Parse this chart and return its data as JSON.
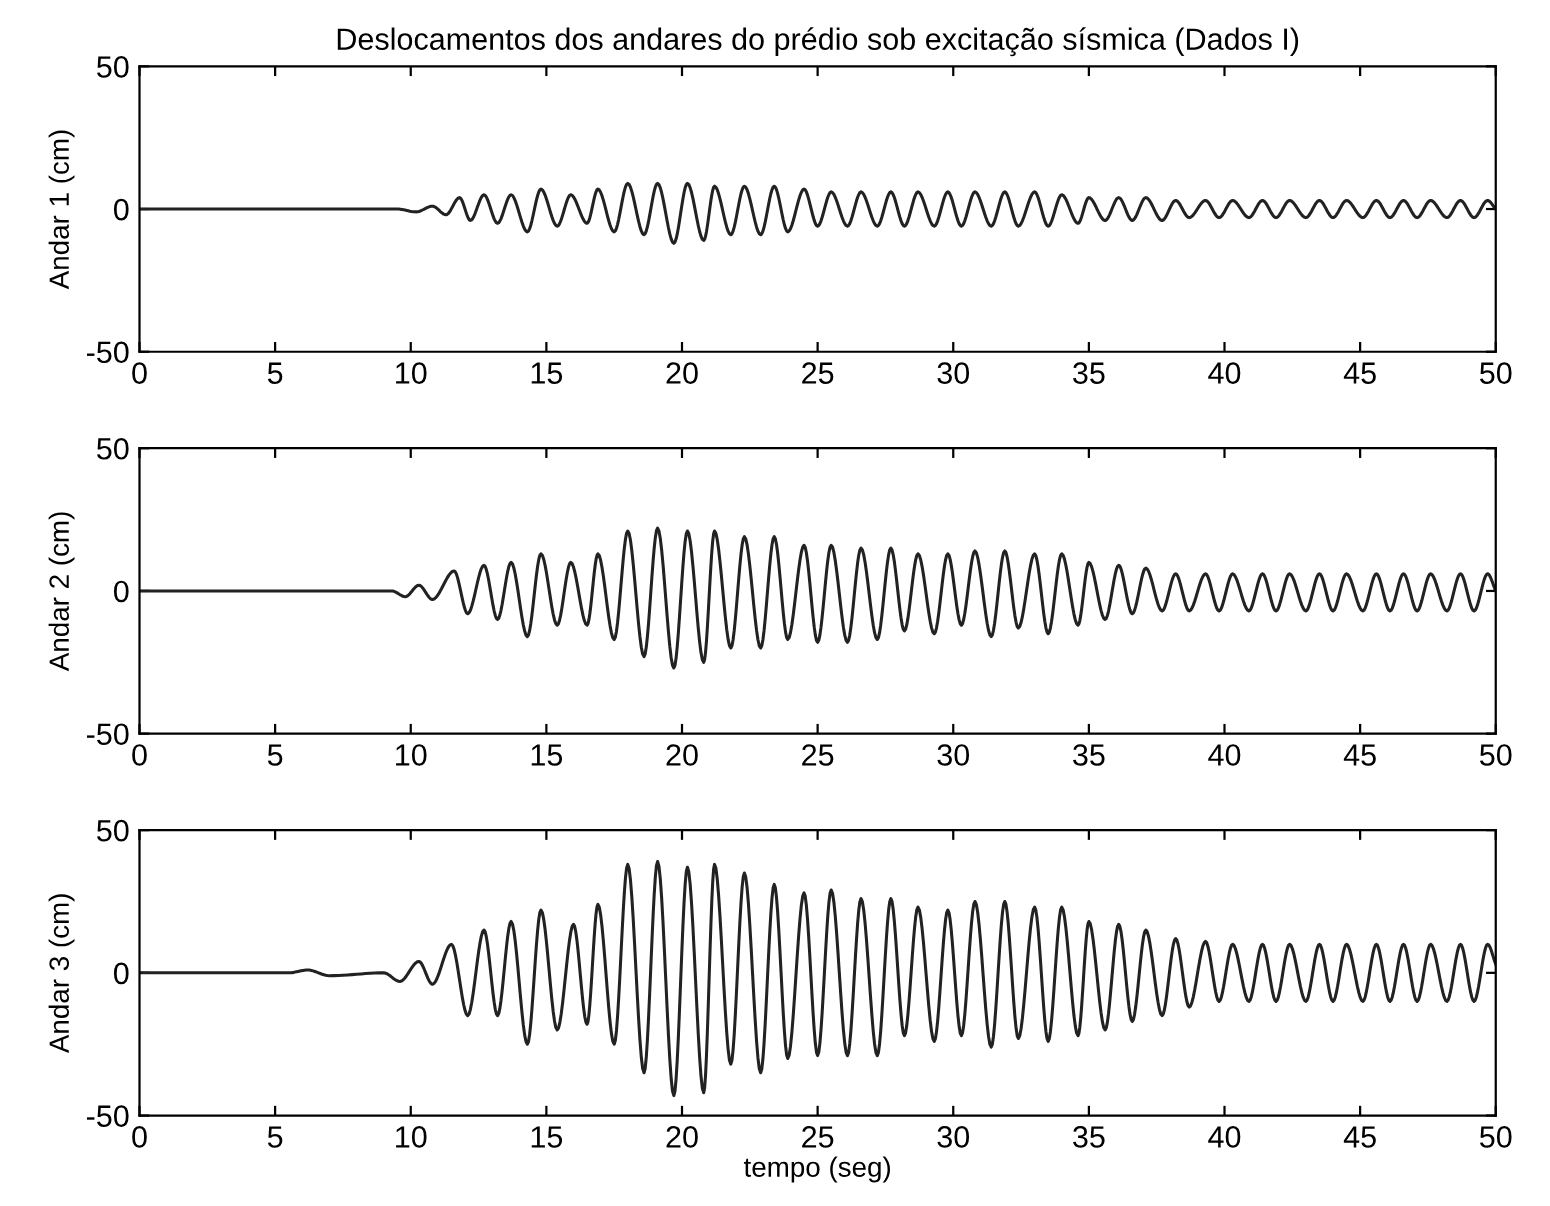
{
  "chart_data": [
    {
      "type": "line",
      "title": "Deslocamentos dos andares do prédio sob excitação sísmica (Dados I)",
      "ylabel": "Andar 1 (cm)",
      "xlim": [
        0,
        50
      ],
      "ylim": [
        -50,
        50
      ],
      "xticks": [
        0,
        5,
        10,
        15,
        20,
        25,
        30,
        35,
        40,
        45,
        50
      ],
      "yticks": [
        -50,
        0,
        50
      ],
      "grid": false,
      "line_style": "solid",
      "series": [
        {
          "color": "#222222",
          "x": [
            0,
            9.5,
            10.2,
            10.8,
            11.3,
            11.8,
            12.2,
            12.7,
            13.2,
            13.7,
            14.3,
            14.8,
            15.4,
            15.9,
            16.5,
            16.9,
            17.5,
            18.0,
            18.6,
            19.1,
            19.7,
            20.2,
            20.8,
            21.2,
            21.8,
            22.3,
            22.9,
            23.4,
            23.9,
            24.5,
            25.0,
            25.5,
            26.1,
            26.6,
            27.2,
            27.7,
            28.2,
            28.7,
            29.3,
            29.8,
            30.3,
            30.8,
            31.4,
            31.9,
            32.4,
            33.0,
            33.5,
            34.0,
            34.6,
            35.0,
            35.6,
            36.1,
            36.6,
            37.1,
            37.7,
            38.2,
            38.7,
            39.3,
            39.8,
            40.3,
            40.9,
            41.4,
            41.9,
            42.4,
            43.0,
            43.5,
            44.0,
            44.5,
            45.1,
            45.6,
            46.1,
            46.6,
            47.1,
            47.6,
            48.2,
            48.7,
            49.2,
            49.7,
            50
          ],
          "values": [
            0,
            0,
            -1,
            1,
            -2,
            4,
            -4,
            5,
            -5,
            5,
            -8,
            7,
            -6,
            5,
            -5,
            7,
            -8,
            9,
            -9,
            9,
            -12,
            9,
            -11,
            8,
            -9,
            8,
            -9,
            8,
            -8,
            7,
            -6,
            6,
            -6,
            6,
            -6,
            6,
            -6,
            6,
            -6,
            6,
            -6,
            6,
            -6,
            6,
            -6,
            6,
            -6,
            5,
            -5,
            4,
            -4,
            4,
            -4,
            4,
            -4,
            3,
            -3,
            3,
            -3,
            3,
            -3,
            3,
            -3,
            3,
            -3,
            3,
            -3,
            3,
            -3,
            3,
            -3,
            3,
            -3,
            3,
            -3,
            3,
            -3,
            3,
            0
          ]
        }
      ]
    },
    {
      "type": "line",
      "ylabel": "Andar 2 (cm)",
      "xlim": [
        0,
        50
      ],
      "ylim": [
        -50,
        50
      ],
      "xticks": [
        0,
        5,
        10,
        15,
        20,
        25,
        30,
        35,
        40,
        45,
        50
      ],
      "yticks": [
        -50,
        0,
        50
      ],
      "grid": false,
      "line_style": "solid",
      "series": [
        {
          "color": "#222222",
          "x": [
            0,
            9.3,
            9.8,
            10.3,
            10.8,
            11.6,
            12.1,
            12.7,
            13.2,
            13.7,
            14.3,
            14.8,
            15.4,
            15.9,
            16.5,
            16.9,
            17.5,
            18.0,
            18.6,
            19.1,
            19.7,
            20.2,
            20.8,
            21.2,
            21.8,
            22.3,
            22.9,
            23.4,
            23.9,
            24.5,
            25.0,
            25.5,
            26.1,
            26.6,
            27.2,
            27.7,
            28.2,
            28.7,
            29.3,
            29.8,
            30.3,
            30.8,
            31.4,
            31.9,
            32.4,
            33.0,
            33.5,
            34.0,
            34.6,
            35.0,
            35.6,
            36.1,
            36.6,
            37.1,
            37.7,
            38.2,
            38.7,
            39.3,
            39.8,
            40.3,
            40.9,
            41.4,
            41.9,
            42.4,
            43.0,
            43.5,
            44.0,
            44.5,
            45.1,
            45.6,
            46.1,
            46.6,
            47.1,
            47.6,
            48.2,
            48.7,
            49.2,
            49.7,
            50
          ],
          "values": [
            0,
            0,
            -2,
            2,
            -3,
            7,
            -8,
            9,
            -10,
            10,
            -16,
            13,
            -12,
            10,
            -12,
            13,
            -17,
            21,
            -23,
            22,
            -27,
            21,
            -25,
            21,
            -20,
            19,
            -20,
            19,
            -17,
            16,
            -18,
            16,
            -18,
            15,
            -17,
            15,
            -14,
            13,
            -15,
            13,
            -12,
            14,
            -16,
            14,
            -13,
            13,
            -15,
            13,
            -12,
            10,
            -10,
            9,
            -8,
            8,
            -7,
            6,
            -7,
            6,
            -7,
            6,
            -7,
            6,
            -7,
            6,
            -7,
            6,
            -7,
            6,
            -7,
            6,
            -7,
            6,
            -7,
            6,
            -7,
            6,
            -7,
            6,
            0
          ]
        }
      ]
    },
    {
      "type": "line",
      "ylabel": "Andar 3 (cm)",
      "xlabel": "tempo (seg)",
      "xlim": [
        0,
        50
      ],
      "ylim": [
        -50,
        50
      ],
      "xticks": [
        0,
        5,
        10,
        15,
        20,
        25,
        30,
        35,
        40,
        45,
        50
      ],
      "yticks": [
        -50,
        0,
        50
      ],
      "grid": false,
      "line_style": "solid",
      "series": [
        {
          "color": "#222222",
          "x": [
            0,
            5.5,
            6.2,
            7.0,
            9.0,
            9.6,
            10.3,
            10.8,
            11.5,
            12.1,
            12.7,
            13.2,
            13.7,
            14.3,
            14.8,
            15.4,
            16.0,
            16.5,
            16.9,
            17.5,
            18.0,
            18.6,
            19.1,
            19.7,
            20.2,
            20.8,
            21.2,
            21.8,
            22.3,
            22.9,
            23.4,
            23.9,
            24.5,
            25.0,
            25.5,
            26.1,
            26.6,
            27.2,
            27.7,
            28.2,
            28.7,
            29.3,
            29.8,
            30.3,
            30.8,
            31.4,
            31.9,
            32.4,
            33.0,
            33.5,
            34.0,
            34.6,
            35.0,
            35.6,
            36.1,
            36.6,
            37.1,
            37.7,
            38.2,
            38.7,
            39.3,
            39.8,
            40.3,
            40.9,
            41.4,
            41.9,
            42.4,
            43.0,
            43.5,
            44.0,
            44.5,
            45.1,
            45.6,
            46.1,
            46.6,
            47.1,
            47.6,
            48.2,
            48.7,
            49.2,
            49.7,
            50
          ],
          "values": [
            0,
            0,
            1,
            -1,
            0,
            -3,
            4,
            -4,
            10,
            -15,
            15,
            -15,
            18,
            -25,
            22,
            -20,
            17,
            -18,
            24,
            -25,
            38,
            -35,
            39,
            -43,
            37,
            -42,
            38,
            -32,
            35,
            -35,
            31,
            -30,
            28,
            -29,
            29,
            -29,
            26,
            -29,
            26,
            -22,
            23,
            -24,
            22,
            -22,
            25,
            -26,
            25,
            -23,
            23,
            -24,
            23,
            -22,
            18,
            -20,
            17,
            -17,
            15,
            -15,
            12,
            -12,
            11,
            -10,
            10,
            -10,
            10,
            -10,
            10,
            -10,
            10,
            -10,
            10,
            -10,
            10,
            -10,
            10,
            -10,
            10,
            -10,
            10,
            -10,
            10,
            3
          ]
        }
      ]
    }
  ]
}
